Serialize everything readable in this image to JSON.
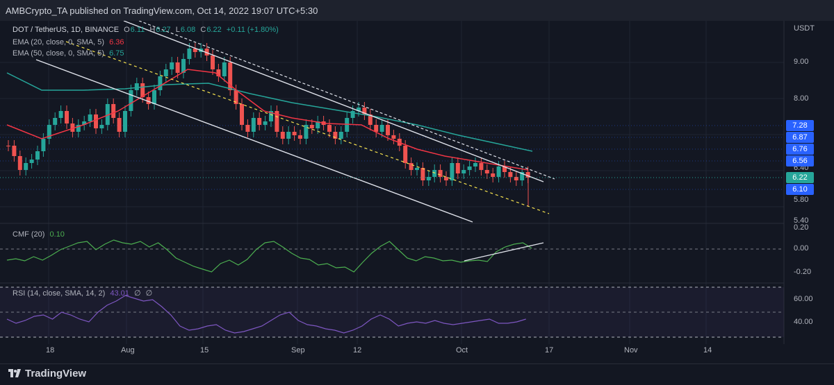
{
  "header": {
    "published": "AMBCrypto_TA published on TradingView.com, Oct 14, 2022 19:07 UTC+5:30"
  },
  "symbol": {
    "name": "DOT / TetherUS, 1D, BINANCE",
    "o_label": "O",
    "o": "6.11",
    "h_label": "H",
    "h": "6.27",
    "l_label": "L",
    "l": "6.08",
    "c_label": "C",
    "c": "6.22",
    "change": "+0.11 (+1.80%)"
  },
  "indicators": {
    "ema20": {
      "label": "EMA (20, close, 0, SMA, 5)",
      "value": "6.36",
      "color": "#f23645"
    },
    "ema50": {
      "label": "EMA (50, close, 0, SMA, 5)",
      "value": "6.75",
      "color": "#26a69a"
    },
    "cmf": {
      "label": "CMF (20)",
      "value": "0.10",
      "color": "#4caf50"
    },
    "rsi": {
      "label": "RSI (14, close, SMA, 14, 2)",
      "value": "43.01",
      "extra1": "∅",
      "extra2": "∅",
      "color": "#7e57c2"
    }
  },
  "price_axis": {
    "currency": "USDT",
    "ticks": [
      "9.00",
      "8.00",
      "6.40",
      "5.80",
      "5.40"
    ],
    "tags": [
      {
        "text": "7.28",
        "color": "#2962ff"
      },
      {
        "text": "6.87",
        "color": "#2962ff"
      },
      {
        "text": "6.76",
        "color": "#2962ff"
      },
      {
        "text": "6.56",
        "color": "#2962ff"
      },
      {
        "text": "6.22",
        "color": "#26a69a"
      },
      {
        "text": "6.10",
        "color": "#2962ff"
      }
    ]
  },
  "cmf_axis": {
    "ticks": [
      "0.20",
      "0.00",
      "-0.20"
    ]
  },
  "rsi_axis": {
    "ticks": [
      "60.00",
      "40.00"
    ]
  },
  "time_axis": {
    "labels": [
      "18",
      "Aug",
      "15",
      "Sep",
      "12",
      "Oct",
      "17",
      "Nov",
      "14"
    ]
  },
  "footer": {
    "brand": "TradingView"
  },
  "colors": {
    "up": "#26a69a",
    "down": "#ef5350",
    "bg": "#131722",
    "grid": "#1f2433"
  }
}
